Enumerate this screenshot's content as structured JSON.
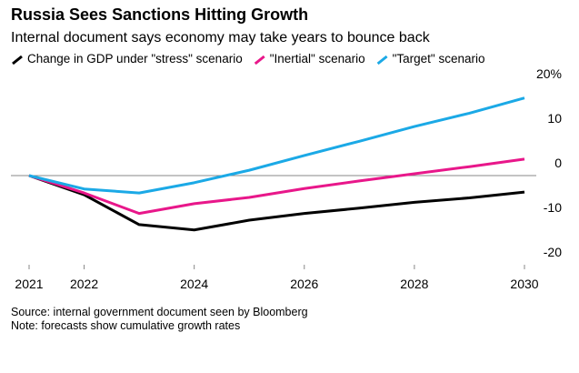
{
  "chart_data": {
    "type": "line",
    "title": "Russia Sees Sanctions Hitting Growth",
    "subtitle": "Internal document says economy may take years to bounce back",
    "x": [
      2021,
      2022,
      2023,
      2024,
      2025,
      2026,
      2027,
      2028,
      2029,
      2030
    ],
    "series": [
      {
        "name": "Change in GDP under \"stress\" scenario",
        "color": "#000000",
        "values": [
          0,
          -4.3,
          -11,
          -12.2,
          -10,
          -8.5,
          -7.3,
          -6,
          -5,
          -3.7
        ]
      },
      {
        "name": "\"Inertial\" scenario",
        "color": "#e8178a",
        "values": [
          0,
          -3.9,
          -8.5,
          -6.3,
          -4.9,
          -2.9,
          -1.2,
          0.4,
          2,
          3.7
        ]
      },
      {
        "name": "\"Target\" scenario",
        "color": "#1ba9e6",
        "values": [
          0,
          -3,
          -3.9,
          -1.6,
          1.2,
          4.5,
          7.7,
          11,
          14,
          17.4
        ]
      }
    ],
    "xlim": [
      2021,
      2030
    ],
    "xticks": [
      2021,
      2022,
      2024,
      2026,
      2028,
      2030
    ],
    "ylim": [
      -20,
      20
    ],
    "yticks": [
      {
        "value": 20,
        "label": "20%"
      },
      10,
      0,
      -10,
      -20
    ],
    "source": "Source: internal government document seen by Bloomberg",
    "note": "Note: forecasts show cumulative growth rates"
  }
}
